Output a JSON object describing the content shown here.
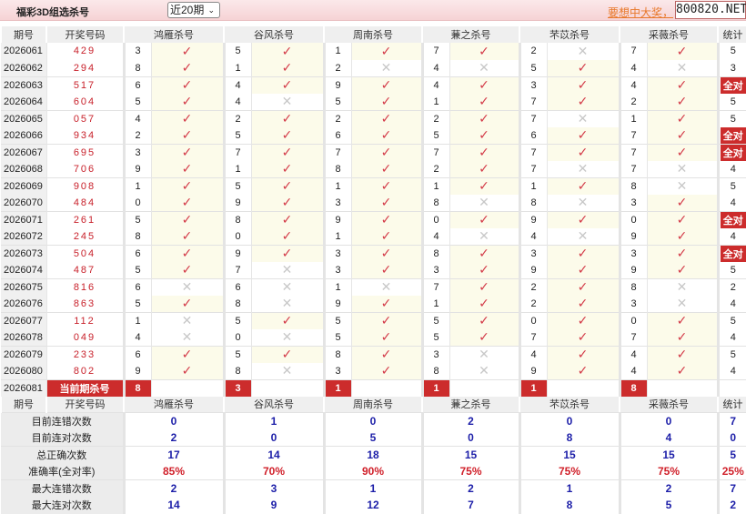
{
  "header": {
    "title": "福彩3D组选杀号",
    "period_select": "近20期",
    "ad_link": "要想中大奖，",
    "site": "800820.NET"
  },
  "columns": [
    "期号",
    "开奖号码",
    "鸿雁杀号",
    "谷风杀号",
    "周南杀号",
    "蒹之杀号",
    "芣苡杀号",
    "采薇杀号",
    "统计"
  ],
  "colors": {
    "accent": "#cc2c2c",
    "hit": "#d33a48",
    "miss": "#c8c8c8",
    "stat_blue": "#1c1ea8"
  },
  "rows": [
    {
      "issue": "2026061",
      "draw": "429",
      "kills": [
        [
          3,
          true
        ],
        [
          5,
          true
        ],
        [
          1,
          true
        ],
        [
          7,
          true
        ],
        [
          2,
          false
        ],
        [
          7,
          true
        ]
      ],
      "stat": "5"
    },
    {
      "issue": "2026062",
      "draw": "294",
      "kills": [
        [
          8,
          true
        ],
        [
          1,
          true
        ],
        [
          2,
          false
        ],
        [
          4,
          false
        ],
        [
          5,
          true
        ],
        [
          4,
          false
        ]
      ],
      "stat": "3"
    },
    {
      "issue": "2026063",
      "draw": "517",
      "kills": [
        [
          6,
          true
        ],
        [
          4,
          true
        ],
        [
          9,
          true
        ],
        [
          4,
          true
        ],
        [
          3,
          true
        ],
        [
          4,
          true
        ]
      ],
      "stat": "全对"
    },
    {
      "issue": "2026064",
      "draw": "604",
      "kills": [
        [
          5,
          true
        ],
        [
          4,
          false
        ],
        [
          5,
          true
        ],
        [
          1,
          true
        ],
        [
          7,
          true
        ],
        [
          2,
          true
        ]
      ],
      "stat": "5"
    },
    {
      "issue": "2026065",
      "draw": "057",
      "kills": [
        [
          4,
          true
        ],
        [
          2,
          true
        ],
        [
          2,
          true
        ],
        [
          2,
          true
        ],
        [
          7,
          false
        ],
        [
          1,
          true
        ]
      ],
      "stat": "5"
    },
    {
      "issue": "2026066",
      "draw": "934",
      "kills": [
        [
          2,
          true
        ],
        [
          5,
          true
        ],
        [
          6,
          true
        ],
        [
          5,
          true
        ],
        [
          6,
          true
        ],
        [
          7,
          true
        ]
      ],
      "stat": "全对"
    },
    {
      "issue": "2026067",
      "draw": "695",
      "kills": [
        [
          3,
          true
        ],
        [
          7,
          true
        ],
        [
          7,
          true
        ],
        [
          7,
          true
        ],
        [
          7,
          true
        ],
        [
          7,
          true
        ]
      ],
      "stat": "全对"
    },
    {
      "issue": "2026068",
      "draw": "706",
      "kills": [
        [
          9,
          true
        ],
        [
          1,
          true
        ],
        [
          8,
          true
        ],
        [
          2,
          true
        ],
        [
          7,
          false
        ],
        [
          7,
          false
        ]
      ],
      "stat": "4"
    },
    {
      "issue": "2026069",
      "draw": "908",
      "kills": [
        [
          1,
          true
        ],
        [
          5,
          true
        ],
        [
          1,
          true
        ],
        [
          1,
          true
        ],
        [
          1,
          true
        ],
        [
          8,
          false
        ]
      ],
      "stat": "5"
    },
    {
      "issue": "2026070",
      "draw": "484",
      "kills": [
        [
          0,
          true
        ],
        [
          9,
          true
        ],
        [
          3,
          true
        ],
        [
          8,
          false
        ],
        [
          8,
          false
        ],
        [
          3,
          true
        ]
      ],
      "stat": "4"
    },
    {
      "issue": "2026071",
      "draw": "261",
      "kills": [
        [
          5,
          true
        ],
        [
          8,
          true
        ],
        [
          9,
          true
        ],
        [
          0,
          true
        ],
        [
          9,
          true
        ],
        [
          0,
          true
        ]
      ],
      "stat": "全对"
    },
    {
      "issue": "2026072",
      "draw": "245",
      "kills": [
        [
          8,
          true
        ],
        [
          0,
          true
        ],
        [
          1,
          true
        ],
        [
          4,
          false
        ],
        [
          4,
          false
        ],
        [
          9,
          true
        ]
      ],
      "stat": "4"
    },
    {
      "issue": "2026073",
      "draw": "504",
      "kills": [
        [
          6,
          true
        ],
        [
          9,
          true
        ],
        [
          3,
          true
        ],
        [
          8,
          true
        ],
        [
          3,
          true
        ],
        [
          3,
          true
        ]
      ],
      "stat": "全对"
    },
    {
      "issue": "2026074",
      "draw": "487",
      "kills": [
        [
          5,
          true
        ],
        [
          7,
          false
        ],
        [
          3,
          true
        ],
        [
          3,
          true
        ],
        [
          9,
          true
        ],
        [
          9,
          true
        ]
      ],
      "stat": "5"
    },
    {
      "issue": "2026075",
      "draw": "816",
      "kills": [
        [
          6,
          false
        ],
        [
          6,
          false
        ],
        [
          1,
          false
        ],
        [
          7,
          true
        ],
        [
          2,
          true
        ],
        [
          8,
          false
        ]
      ],
      "stat": "2"
    },
    {
      "issue": "2026076",
      "draw": "863",
      "kills": [
        [
          5,
          true
        ],
        [
          8,
          false
        ],
        [
          9,
          true
        ],
        [
          1,
          true
        ],
        [
          2,
          true
        ],
        [
          3,
          false
        ]
      ],
      "stat": "4"
    },
    {
      "issue": "2026077",
      "draw": "112",
      "kills": [
        [
          1,
          false
        ],
        [
          5,
          true
        ],
        [
          5,
          true
        ],
        [
          5,
          true
        ],
        [
          0,
          true
        ],
        [
          0,
          true
        ]
      ],
      "stat": "5"
    },
    {
      "issue": "2026078",
      "draw": "049",
      "kills": [
        [
          4,
          false
        ],
        [
          0,
          false
        ],
        [
          5,
          true
        ],
        [
          5,
          true
        ],
        [
          7,
          true
        ],
        [
          7,
          true
        ]
      ],
      "stat": "4"
    },
    {
      "issue": "2026079",
      "draw": "233",
      "kills": [
        [
          6,
          true
        ],
        [
          5,
          true
        ],
        [
          8,
          true
        ],
        [
          3,
          false
        ],
        [
          4,
          true
        ],
        [
          4,
          true
        ]
      ],
      "stat": "5"
    },
    {
      "issue": "2026080",
      "draw": "802",
      "kills": [
        [
          9,
          true
        ],
        [
          8,
          false
        ],
        [
          3,
          true
        ],
        [
          8,
          false
        ],
        [
          9,
          true
        ],
        [
          4,
          true
        ]
      ],
      "stat": "4"
    }
  ],
  "current": {
    "issue": "2026081",
    "label": "当前期杀号",
    "kills": [
      "8",
      "3",
      "1",
      "1",
      "1",
      "8"
    ]
  },
  "stats": [
    {
      "label": "目前连错次数",
      "values": [
        "0",
        "1",
        "0",
        "2",
        "0",
        "0",
        "7"
      ]
    },
    {
      "label": "目前连对次数",
      "values": [
        "2",
        "0",
        "5",
        "0",
        "8",
        "4",
        "0"
      ]
    },
    {
      "label": "总正确次数",
      "values": [
        "17",
        "14",
        "18",
        "15",
        "15",
        "15",
        "5"
      ]
    },
    {
      "label": "准确率(全对率)",
      "values": [
        "85%",
        "70%",
        "90%",
        "75%",
        "75%",
        "75%",
        "25%"
      ],
      "rate": true
    },
    {
      "label": "最大连错次数",
      "values": [
        "2",
        "3",
        "1",
        "2",
        "1",
        "2",
        "7"
      ]
    },
    {
      "label": "最大连对次数",
      "values": [
        "14",
        "9",
        "12",
        "7",
        "8",
        "5",
        "2"
      ]
    }
  ]
}
